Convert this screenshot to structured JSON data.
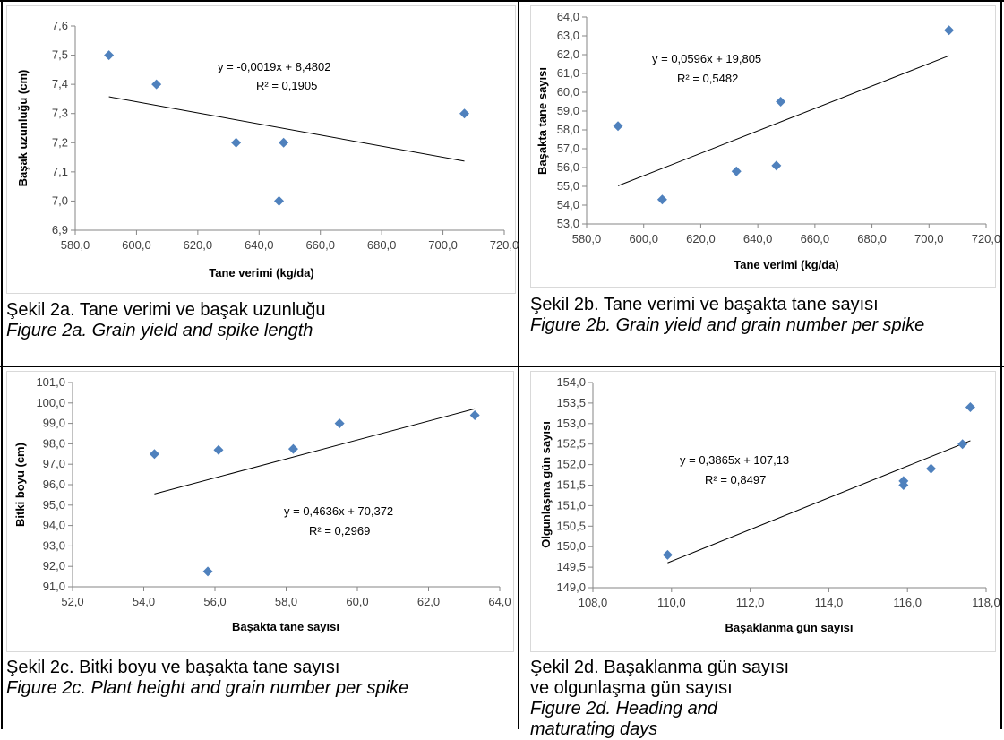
{
  "chart_data": [
    {
      "type": "scatter",
      "xlabel": "Tane verimi (kg/da)",
      "ylabel": "Başak uzunluğu (cm)",
      "xlim": [
        580,
        720
      ],
      "ylim": [
        6.9,
        7.6
      ],
      "xticks": [
        "580,0",
        "600,0",
        "620,0",
        "640,0",
        "660,0",
        "680,0",
        "700,0",
        "720,0"
      ],
      "yticks": [
        "6,9",
        "7,0",
        "7,1",
        "7,2",
        "7,3",
        "7,4",
        "7,5",
        "7,6"
      ],
      "points": [
        [
          591,
          7.5
        ],
        [
          606.5,
          7.4
        ],
        [
          632.5,
          7.2
        ],
        [
          646.5,
          7.0
        ],
        [
          648,
          7.2
        ],
        [
          707,
          7.3
        ]
      ],
      "trendline": {
        "slope": -0.0019,
        "intercept": 8.4802,
        "x_range": [
          591,
          707
        ]
      },
      "equation": "y = -0,0019x + 8,4802",
      "r2": "R² = 0,1905",
      "marker_color": "#4f81bd",
      "caption_tr": "Şekil 2a. Tane verimi ve başak uzunluğu",
      "caption_en": "Figure 2a. Grain yield and spike length"
    },
    {
      "type": "scatter",
      "xlabel": "Tane verimi (kg/da)",
      "ylabel": "Başakta tane sayısı",
      "xlim": [
        580,
        720
      ],
      "ylim": [
        53,
        64
      ],
      "xticks": [
        "580,0",
        "600,0",
        "620,0",
        "640,0",
        "660,0",
        "680,0",
        "700,0",
        "720,0"
      ],
      "yticks": [
        "53,0",
        "54,0",
        "55,0",
        "56,0",
        "57,0",
        "58,0",
        "59,0",
        "60,0",
        "61,0",
        "62,0",
        "63,0",
        "64,0"
      ],
      "points": [
        [
          591,
          58.2
        ],
        [
          606.5,
          54.3
        ],
        [
          632.5,
          55.8
        ],
        [
          646.5,
          56.1
        ],
        [
          648,
          59.5
        ],
        [
          707,
          63.3
        ]
      ],
      "trendline": {
        "slope": 0.0596,
        "intercept": 19.805,
        "x_range": [
          591,
          707
        ]
      },
      "equation": "y = 0,0596x + 19,805",
      "r2": "R² = 0,5482",
      "marker_color": "#4f81bd",
      "caption_tr": "Şekil 2b. Tane verimi ve başakta tane sayısı",
      "caption_en": "Figure 2b. Grain yield and grain number per spike"
    },
    {
      "type": "scatter",
      "xlabel": "Başakta tane sayısı",
      "ylabel": "Bitki boyu (cm)",
      "xlim": [
        52,
        64
      ],
      "ylim": [
        91,
        101
      ],
      "xticks": [
        "52,0",
        "54,0",
        "56,0",
        "58,0",
        "60,0",
        "62,0",
        "64,0"
      ],
      "yticks": [
        "91,0",
        "92,0",
        "93,0",
        "94,0",
        "95,0",
        "96,0",
        "97,0",
        "98,0",
        "99,0",
        "100,0",
        "101,0"
      ],
      "points": [
        [
          54.3,
          97.5
        ],
        [
          55.8,
          91.75
        ],
        [
          56.1,
          97.7
        ],
        [
          58.2,
          97.75
        ],
        [
          59.5,
          99.0
        ],
        [
          63.3,
          99.4
        ]
      ],
      "trendline": {
        "slope": 0.4636,
        "intercept": 70.372,
        "x_range": [
          54.3,
          63.3
        ]
      },
      "equation": "y = 0,4636x + 70,372",
      "r2": "R² = 0,2969",
      "marker_color": "#4f81bd",
      "caption_tr": "Şekil 2c. Bitki boyu ve başakta tane sayısı",
      "caption_en": "Figure 2c. Plant height and grain number per spike"
    },
    {
      "type": "scatter",
      "xlabel": "Başaklanma gün sayısı",
      "ylabel": "Olgunlaşma gün sayısı",
      "xlim": [
        108,
        118
      ],
      "ylim": [
        149,
        154
      ],
      "xticks": [
        "108,0",
        "110,0",
        "112,0",
        "114,0",
        "116,0",
        "118,0"
      ],
      "yticks": [
        "149,0",
        "149,5",
        "150,0",
        "150,5",
        "151,0",
        "151,5",
        "152,0",
        "152,5",
        "153,0",
        "153,5",
        "154,0"
      ],
      "points": [
        [
          109.9,
          149.8
        ],
        [
          115.9,
          151.5
        ],
        [
          115.9,
          151.6
        ],
        [
          116.6,
          151.9
        ],
        [
          117.4,
          152.5
        ],
        [
          117.6,
          153.4
        ]
      ],
      "trendline": {
        "slope": 0.3865,
        "intercept": 107.13,
        "x_range": [
          109.9,
          117.6
        ]
      },
      "equation": "y = 0,3865x + 107,13",
      "r2": "R² = 0,8497",
      "marker_color": "#4f81bd",
      "caption_tr": "Şekil 2d. Başaklanma gün sayısı ve olgunlaşma gün sayısı",
      "caption_en": "Figure 2d. Heading and maturating days"
    }
  ]
}
